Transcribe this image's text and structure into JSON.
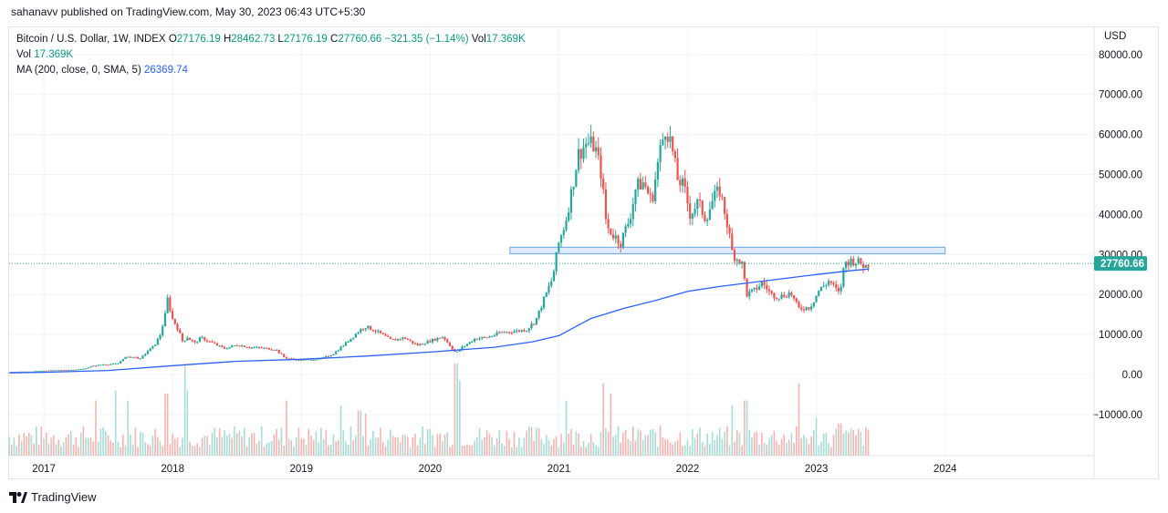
{
  "header": {
    "published": "sahanavv published on TradingView.com, May 30, 2023 06:43 UTC+5:30"
  },
  "legend": {
    "symbol": "Bitcoin / U.S. Dollar, 1W, INDEX",
    "o_label": "O",
    "o": "27176.19",
    "h_label": "H",
    "h": "28462.73",
    "l_label": "L",
    "l": "27176.19",
    "c_label": "C",
    "c": "27760.66",
    "change": "−321.35 (−1.14%)",
    "vol_inline_label": "Vol",
    "vol_inline": "17.369K",
    "vol_label": "Vol",
    "vol": "17.369K",
    "ma_label": "MA (200, close, 0, SMA, 5)",
    "ma": "26369.74"
  },
  "axis": {
    "currency": "USD",
    "last_price_tag": "27760.66"
  },
  "footer": {
    "brand": "TradingView"
  },
  "colors": {
    "up": "#26a69a",
    "down": "#ef5350",
    "ma": "#2962ff",
    "vol_up": "#a8dcd6",
    "vol_down": "#f7b3b0",
    "zone_fill": "#d6e6fb",
    "zone_stroke": "#7fb1ec",
    "tag": "#26a69a",
    "grid": "#f0f3fa"
  },
  "chart_data": {
    "type": "candlestick",
    "interval": "1W",
    "y_ticks": [
      "80000.00",
      "70000.00",
      "60000.00",
      "50000.00",
      "40000.00",
      "30000.00",
      "20000.00",
      "10000.00",
      "0.00",
      "−10000.00"
    ],
    "y_tick_values": [
      80000,
      70000,
      60000,
      50000,
      40000,
      30000,
      20000,
      10000,
      0,
      -10000
    ],
    "ylim": [
      -20000,
      85000
    ],
    "x_ticks": [
      "2017",
      "2018",
      "2019",
      "2020",
      "2021",
      "2022",
      "2023",
      "2024"
    ],
    "x_tick_values": [
      2017,
      2018,
      2019,
      2020,
      2021,
      2022,
      2023,
      2024
    ],
    "xlim": [
      2016.73,
      2025.15
    ],
    "last_close": 27760.66,
    "last_x": 2023.41,
    "resistance_zone": {
      "x_start": 2020.62,
      "x_end": 2024.0,
      "y_low": 30200,
      "y_high": 31800
    },
    "price_path": [
      [
        2016.73,
        650
      ],
      [
        2016.9,
        730
      ],
      [
        2017.0,
        970
      ],
      [
        2017.1,
        1050
      ],
      [
        2017.2,
        1150
      ],
      [
        2017.3,
        1350
      ],
      [
        2017.38,
        2100
      ],
      [
        2017.45,
        2500
      ],
      [
        2017.5,
        2500
      ],
      [
        2017.58,
        2800
      ],
      [
        2017.62,
        4200
      ],
      [
        2017.7,
        4400
      ],
      [
        2017.75,
        3900
      ],
      [
        2017.8,
        5700
      ],
      [
        2017.85,
        7000
      ],
      [
        2017.9,
        9500
      ],
      [
        2017.94,
        14500
      ],
      [
        2017.96,
        19000
      ],
      [
        2018.0,
        13800
      ],
      [
        2018.04,
        11500
      ],
      [
        2018.08,
        8000
      ],
      [
        2018.11,
        9500
      ],
      [
        2018.17,
        7800
      ],
      [
        2018.22,
        9200
      ],
      [
        2018.3,
        8000
      ],
      [
        2018.4,
        6500
      ],
      [
        2018.5,
        7400
      ],
      [
        2018.6,
        6800
      ],
      [
        2018.7,
        6600
      ],
      [
        2018.8,
        6300
      ],
      [
        2018.87,
        4200
      ],
      [
        2018.95,
        3700
      ],
      [
        2019.0,
        3600
      ],
      [
        2019.15,
        3900
      ],
      [
        2019.25,
        5200
      ],
      [
        2019.35,
        8000
      ],
      [
        2019.45,
        11000
      ],
      [
        2019.5,
        12000
      ],
      [
        2019.6,
        10500
      ],
      [
        2019.7,
        8500
      ],
      [
        2019.8,
        9200
      ],
      [
        2019.9,
        7300
      ],
      [
        2020.0,
        8400
      ],
      [
        2020.1,
        9500
      ],
      [
        2020.2,
        5300
      ],
      [
        2020.25,
        6800
      ],
      [
        2020.35,
        9000
      ],
      [
        2020.45,
        9300
      ],
      [
        2020.55,
        10500
      ],
      [
        2020.65,
        10800
      ],
      [
        2020.75,
        11200
      ],
      [
        2020.82,
        13500
      ],
      [
        2020.88,
        18500
      ],
      [
        2020.95,
        24000
      ],
      [
        2021.0,
        33000
      ],
      [
        2021.05,
        38000
      ],
      [
        2021.1,
        46000
      ],
      [
        2021.15,
        55000
      ],
      [
        2021.22,
        58000
      ],
      [
        2021.28,
        57000
      ],
      [
        2021.33,
        50000
      ],
      [
        2021.37,
        37000
      ],
      [
        2021.42,
        35000
      ],
      [
        2021.48,
        33000
      ],
      [
        2021.55,
        39000
      ],
      [
        2021.6,
        47000
      ],
      [
        2021.66,
        48000
      ],
      [
        2021.72,
        43000
      ],
      [
        2021.78,
        55000
      ],
      [
        2021.83,
        62000
      ],
      [
        2021.87,
        58000
      ],
      [
        2021.92,
        49000
      ],
      [
        2021.97,
        47000
      ],
      [
        2022.02,
        40000
      ],
      [
        2022.08,
        43000
      ],
      [
        2022.14,
        39000
      ],
      [
        2022.2,
        44000
      ],
      [
        2022.25,
        46000
      ],
      [
        2022.3,
        39000
      ],
      [
        2022.35,
        30000
      ],
      [
        2022.42,
        28000
      ],
      [
        2022.46,
        20000
      ],
      [
        2022.52,
        21000
      ],
      [
        2022.58,
        23000
      ],
      [
        2022.65,
        20000
      ],
      [
        2022.72,
        19500
      ],
      [
        2022.8,
        20500
      ],
      [
        2022.86,
        16500
      ],
      [
        2022.95,
        16800
      ],
      [
        2023.02,
        21000
      ],
      [
        2023.1,
        23500
      ],
      [
        2023.18,
        20000
      ],
      [
        2023.22,
        28000
      ],
      [
        2023.28,
        28500
      ],
      [
        2023.33,
        28000
      ],
      [
        2023.38,
        27000
      ],
      [
        2023.41,
        27760
      ]
    ],
    "ma_path": [
      [
        2016.73,
        400
      ],
      [
        2017.0,
        550
      ],
      [
        2017.5,
        1000
      ],
      [
        2018.0,
        2200
      ],
      [
        2018.5,
        3300
      ],
      [
        2019.0,
        3800
      ],
      [
        2019.5,
        4600
      ],
      [
        2020.0,
        5600
      ],
      [
        2020.5,
        6800
      ],
      [
        2020.8,
        8200
      ],
      [
        2021.0,
        9700
      ],
      [
        2021.25,
        14000
      ],
      [
        2021.5,
        16500
      ],
      [
        2021.75,
        18500
      ],
      [
        2022.0,
        20800
      ],
      [
        2022.25,
        22000
      ],
      [
        2022.5,
        23000
      ],
      [
        2022.75,
        24000
      ],
      [
        2023.0,
        25000
      ],
      [
        2023.25,
        25900
      ],
      [
        2023.41,
        26370
      ]
    ],
    "volume_spikes": [
      [
        2017.4,
        0.55
      ],
      [
        2017.55,
        0.65
      ],
      [
        2017.65,
        0.55
      ],
      [
        2017.95,
        0.62
      ],
      [
        2018.1,
        0.9
      ],
      [
        2018.12,
        0.65
      ],
      [
        2018.88,
        0.55
      ],
      [
        2019.3,
        0.5
      ],
      [
        2019.45,
        0.45
      ],
      [
        2019.5,
        0.42
      ],
      [
        2020.2,
        0.92
      ],
      [
        2020.22,
        0.75
      ],
      [
        2021.05,
        0.55
      ],
      [
        2021.35,
        0.72
      ],
      [
        2021.4,
        0.62
      ],
      [
        2022.35,
        0.5
      ],
      [
        2022.45,
        0.55
      ],
      [
        2022.86,
        0.72
      ],
      [
        2023.0,
        0.38
      ],
      [
        2023.18,
        0.32
      ]
    ]
  }
}
